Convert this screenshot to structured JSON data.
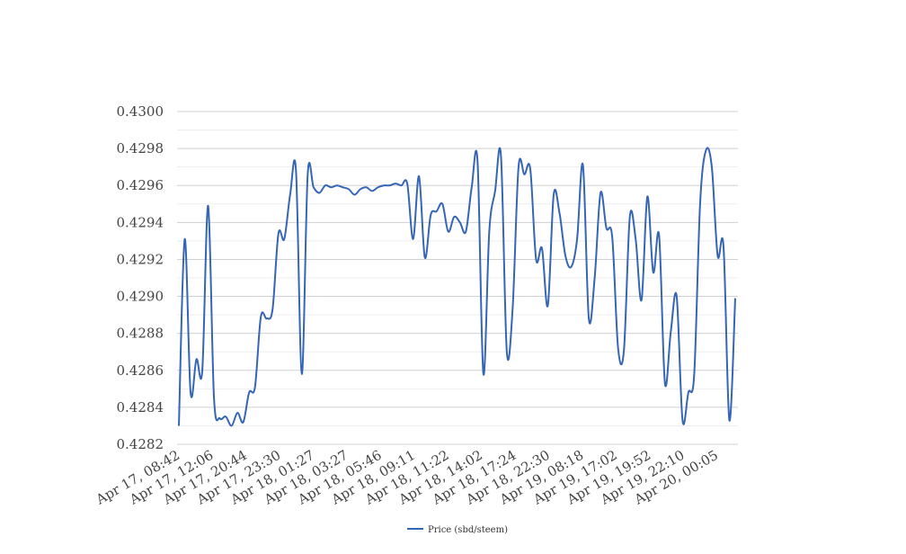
{
  "chart_data": {
    "type": "line",
    "title": "",
    "xlabel": "",
    "ylabel": "",
    "ylim": [
      0.4282,
      0.43
    ],
    "y_ticks": [
      "0.4300",
      "0.4298",
      "0.4296",
      "0.4294",
      "0.4292",
      "0.4290",
      "0.4288",
      "0.4286",
      "0.4284",
      "0.4282"
    ],
    "x_tick_labels": [
      "Apr 17, 08:42",
      "Apr 17, 12:06",
      "Apr 17, 20:44",
      "Apr 17, 23:30",
      "Apr 18, 01:27",
      "Apr 18, 03:27",
      "Apr 18, 05:46",
      "Apr 18, 09:11",
      "Apr 18, 11:22",
      "Apr 18, 14:02",
      "Apr 18, 17:24",
      "Apr 18, 22:30",
      "Apr 19, 08:18",
      "Apr 19, 17:02",
      "Apr 19, 19:52",
      "Apr 19, 22:10",
      "Apr 20, 00:05"
    ],
    "grid": true,
    "legend_position": "bottom",
    "series": [
      {
        "name": "Price (sbd/steem)",
        "color": "#3565b5",
        "values": [
          0.4283,
          0.42931,
          0.42848,
          0.42866,
          0.4286,
          0.42949,
          0.42845,
          0.42834,
          0.42835,
          0.4283,
          0.42837,
          0.42832,
          0.42848,
          0.42851,
          0.42889,
          0.42888,
          0.42893,
          0.42934,
          0.42931,
          0.42955,
          0.42968,
          0.42858,
          0.42966,
          0.42959,
          0.42956,
          0.4296,
          0.42959,
          0.4296,
          0.42959,
          0.42958,
          0.42955,
          0.42958,
          0.42959,
          0.42957,
          0.42959,
          0.4296,
          0.4296,
          0.42961,
          0.4296,
          0.42961,
          0.42931,
          0.42965,
          0.42921,
          0.42944,
          0.42946,
          0.4295,
          0.42935,
          0.42943,
          0.4294,
          0.42935,
          0.42959,
          0.42973,
          0.42858,
          0.42935,
          0.42957,
          0.42976,
          0.4287,
          0.42894,
          0.4297,
          0.42966,
          0.42969,
          0.4292,
          0.42926,
          0.42895,
          0.42955,
          0.42945,
          0.42922,
          0.42916,
          0.42931,
          0.42971,
          0.42888,
          0.4291,
          0.42956,
          0.42937,
          0.42932,
          0.42872,
          0.42871,
          0.42943,
          0.42931,
          0.42898,
          0.42954,
          0.42913,
          0.42933,
          0.42853,
          0.42881,
          0.429,
          0.42833,
          0.42848,
          0.42858,
          0.4295,
          0.42979,
          0.4297,
          0.42922,
          0.42927,
          0.42833,
          0.42899
        ]
      }
    ]
  }
}
